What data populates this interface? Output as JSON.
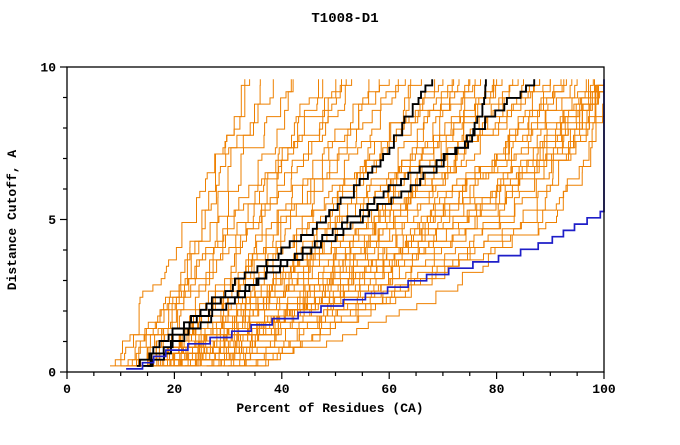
{
  "page": {
    "title": "T1008-D1"
  },
  "chart_data": {
    "type": "line",
    "title": "T1008-D1",
    "xlabel": "Percent of Residues (CA)",
    "ylabel": "Distance Cutoff, A",
    "xlim": [
      0,
      100
    ],
    "ylim": [
      0,
      10
    ],
    "x_ticks": {
      "major": [
        0,
        20,
        40,
        60,
        80,
        100
      ],
      "minor_step": 5
    },
    "y_ticks": {
      "major": [
        0,
        5,
        10
      ],
      "minor_step": 1
    },
    "grid": false,
    "legend": "none",
    "colors": {
      "ensemble": "#EE8000",
      "highlight": "#000000",
      "reference": "#1E1EC8",
      "axis": "#000000",
      "background": "#FFFFFF"
    },
    "series": {
      "reference_curve": {
        "name": "reference-model-blue",
        "color_key": "reference",
        "points": [
          [
            11,
            0.1
          ],
          [
            14,
            0.3
          ],
          [
            18,
            0.7
          ],
          [
            24,
            1.0
          ],
          [
            30,
            1.3
          ],
          [
            37,
            1.7
          ],
          [
            44,
            2.0
          ],
          [
            50,
            2.3
          ],
          [
            56,
            2.6
          ],
          [
            62,
            2.9
          ],
          [
            67,
            3.2
          ],
          [
            73,
            3.5
          ],
          [
            80,
            3.8
          ],
          [
            86,
            4.1
          ],
          [
            90,
            4.4
          ],
          [
            93,
            4.7
          ],
          [
            96,
            5.0
          ],
          [
            99,
            5.2
          ],
          [
            100,
            5.4
          ],
          [
            100,
            9.6
          ]
        ]
      },
      "highlight_curves": [
        {
          "name": "highlight-model-1",
          "color_key": "highlight",
          "points": [
            [
              13,
              0.2
            ],
            [
              16,
              0.8
            ],
            [
              20,
              1.4
            ],
            [
              24,
              2.0
            ],
            [
              28,
              2.5
            ],
            [
              33,
              3.2
            ],
            [
              38,
              3.8
            ],
            [
              43,
              4.4
            ],
            [
              47,
              5.0
            ],
            [
              51,
              5.6
            ],
            [
              55,
              6.3
            ],
            [
              58,
              7.0
            ],
            [
              61,
              7.8
            ],
            [
              64,
              8.6
            ],
            [
              66,
              9.2
            ],
            [
              68,
              9.6
            ]
          ]
        },
        {
          "name": "highlight-model-2",
          "color_key": "highlight",
          "points": [
            [
              14,
              0.2
            ],
            [
              18,
              0.9
            ],
            [
              23,
              1.6
            ],
            [
              28,
              2.3
            ],
            [
              34,
              3.0
            ],
            [
              40,
              3.7
            ],
            [
              46,
              4.3
            ],
            [
              52,
              5.0
            ],
            [
              57,
              5.7
            ],
            [
              63,
              6.4
            ],
            [
              69,
              7.0
            ],
            [
              74,
              7.5
            ],
            [
              76,
              8.0
            ],
            [
              77,
              9.0
            ],
            [
              78,
              9.6
            ]
          ]
        },
        {
          "name": "highlight-model-3",
          "color_key": "highlight",
          "points": [
            [
              15,
              0.2
            ],
            [
              20,
              1.0
            ],
            [
              26,
              1.8
            ],
            [
              32,
              2.6
            ],
            [
              38,
              3.3
            ],
            [
              45,
              4.0
            ],
            [
              52,
              4.8
            ],
            [
              58,
              5.5
            ],
            [
              64,
              6.2
            ],
            [
              70,
              7.0
            ],
            [
              75,
              7.8
            ],
            [
              79,
              8.5
            ],
            [
              83,
              9.1
            ],
            [
              87,
              9.6
            ]
          ]
        }
      ],
      "orange_ensemble": {
        "name": "model-ensemble",
        "color_key": "ensemble",
        "anchor_levels_y": [
          0.2,
          5.0,
          9.6
        ],
        "curves": [
          [
            8,
            22,
            34
          ],
          [
            9,
            25,
            38
          ],
          [
            10,
            28,
            42
          ],
          [
            10,
            24,
            33
          ],
          [
            11,
            30,
            46
          ],
          [
            12,
            26,
            36
          ],
          [
            12,
            32,
            50
          ],
          [
            13,
            35,
            52
          ],
          [
            13,
            29,
            41
          ],
          [
            14,
            38,
            56
          ],
          [
            14,
            33,
            47
          ],
          [
            15,
            40,
            60
          ],
          [
            15,
            36,
            53
          ],
          [
            16,
            42,
            63
          ],
          [
            16,
            34,
            49
          ],
          [
            17,
            45,
            66
          ],
          [
            17,
            39,
            58
          ],
          [
            18,
            48,
            70
          ],
          [
            18,
            41,
            61
          ],
          [
            19,
            50,
            73
          ],
          [
            19,
            44,
            64
          ],
          [
            20,
            52,
            76
          ],
          [
            20,
            46,
            68
          ],
          [
            21,
            55,
            80
          ],
          [
            21,
            48,
            71
          ],
          [
            22,
            58,
            84
          ],
          [
            22,
            50,
            74
          ],
          [
            23,
            60,
            87
          ],
          [
            23,
            52,
            77
          ],
          [
            24,
            62,
            90
          ],
          [
            24,
            54,
            79
          ],
          [
            25,
            65,
            93
          ],
          [
            25,
            56,
            81
          ],
          [
            26,
            68,
            96
          ],
          [
            26,
            58,
            83
          ],
          [
            27,
            70,
            98
          ],
          [
            27,
            60,
            85
          ],
          [
            28,
            72,
            100
          ],
          [
            28,
            62,
            88
          ],
          [
            29,
            75,
            100
          ],
          [
            29,
            64,
            90
          ],
          [
            30,
            78,
            100
          ],
          [
            30,
            66,
            92
          ],
          [
            31,
            80,
            100
          ],
          [
            31,
            68,
            94
          ],
          [
            32,
            82,
            100
          ],
          [
            18,
            70,
            95
          ],
          [
            33,
            85,
            100
          ],
          [
            16,
            72,
            97
          ],
          [
            34,
            88,
            100
          ],
          [
            14,
            74,
            99
          ],
          [
            35,
            90,
            100
          ],
          [
            12,
            76,
            100
          ],
          [
            20,
            85,
            100
          ],
          [
            11,
            60,
            78
          ],
          [
            13,
            55,
            72
          ],
          [
            15,
            65,
            88
          ],
          [
            17,
            58,
            75
          ],
          [
            19,
            68,
            92
          ],
          [
            21,
            72,
            97
          ]
        ]
      }
    }
  }
}
